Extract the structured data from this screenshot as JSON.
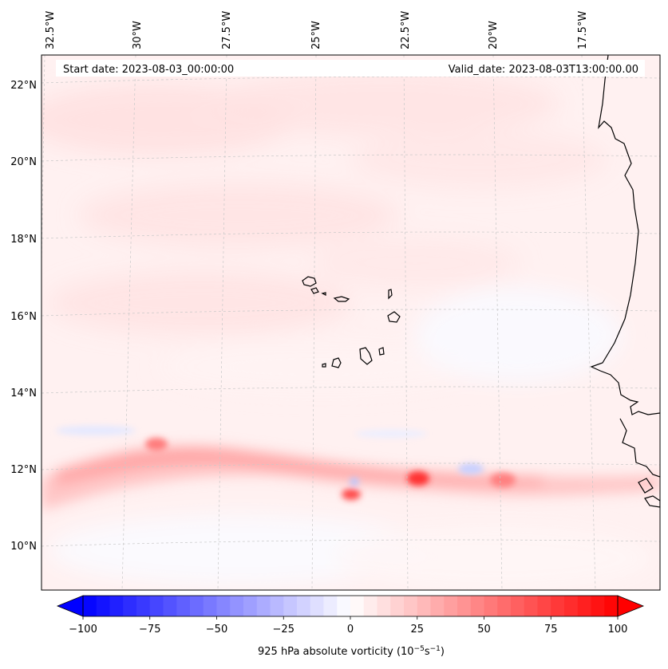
{
  "map": {
    "start_date": "Start date: 2023-08-03_00:00:00",
    "valid_date": "Valid_date: 2023-08-03T13:00:00.00",
    "lon_labels": [
      "32.5°W",
      "30°W",
      "27.5°W",
      "25°W",
      "22.5°W",
      "20°W",
      "17.5°W"
    ],
    "lat_labels": [
      "22°N",
      "20°N",
      "18°N",
      "16°N",
      "14°N",
      "12°N",
      "10°N"
    ],
    "extent": {
      "lon_min": -33.0,
      "lon_max": -15.3,
      "lat_min": 8.9,
      "lat_max": 22.8
    },
    "features": [
      {
        "name": "itcz-vorticity-band",
        "lat": 12.0,
        "value": 25
      },
      {
        "name": "vorticity-max-east",
        "lon": -22.2,
        "lat": 11.7,
        "value": 75
      },
      {
        "name": "vorticity-max-west",
        "lon": -24.1,
        "lat": 11.3,
        "value": 60
      },
      {
        "name": "vorticity-max-band",
        "lon": -29.4,
        "lat": 12.6,
        "value": 45
      },
      {
        "name": "vorticity-max-far-east",
        "lon": -19.9,
        "lat": 11.8,
        "value": 40
      },
      {
        "name": "vorticity-min-south",
        "lon": -21.0,
        "lat": 11.9,
        "value": -25
      }
    ]
  },
  "colorbar": {
    "label": "925 hPa absolute vorticity (10",
    "label_exp1": "−5",
    "label_mid": "s",
    "label_exp2": "−1",
    "label_end": ")",
    "ticks": [
      "−100",
      "−75",
      "−50",
      "−25",
      "0",
      "25",
      "50",
      "75",
      "100"
    ],
    "min": -100,
    "max": 100,
    "levels": 40,
    "colors": {
      "negative": "#0000ff",
      "zero": "#ffffff",
      "positive": "#ff0000"
    }
  },
  "colors": {
    "land_outline": "#000000",
    "background_field": "#fff1f1",
    "grid": "#bbbbbb"
  }
}
